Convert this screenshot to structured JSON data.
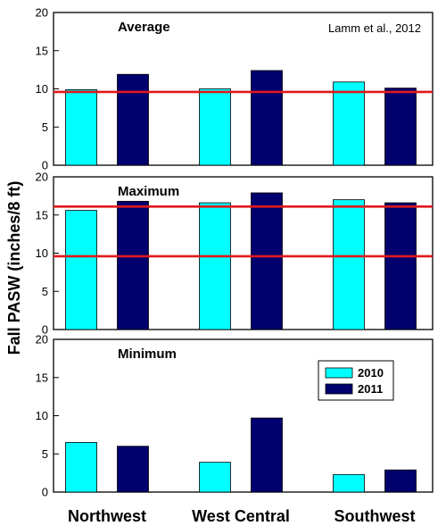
{
  "chart_data": {
    "type": "bar",
    "ylabel": "Fall PASW (inches/8 ft)",
    "annotation": "Lamm et al., 2012",
    "categories": [
      "Northwest",
      "West Central",
      "Southwest"
    ],
    "ylim": [
      0,
      20
    ],
    "yticks": [
      0,
      5,
      10,
      15,
      20
    ],
    "legend": {
      "placement": "right",
      "panel": "Minimum",
      "entries": [
        "2010",
        "2011"
      ]
    },
    "colors": {
      "2010": "#00ffff",
      "2011": "#00006e",
      "reference_line": "#e0191c"
    },
    "panels": [
      {
        "title": "Average",
        "series": [
          {
            "name": "2010",
            "values": [
              9.9,
              10.0,
              10.9
            ]
          },
          {
            "name": "2011",
            "values": [
              11.9,
              12.4,
              10.1
            ]
          }
        ],
        "reference_lines": [
          9.6
        ]
      },
      {
        "title": "Maximum",
        "series": [
          {
            "name": "2010",
            "values": [
              15.6,
              16.6,
              17.0
            ]
          },
          {
            "name": "2011",
            "values": [
              16.8,
              17.9,
              16.6
            ]
          }
        ],
        "reference_lines": [
          16.1,
          9.6
        ]
      },
      {
        "title": "Minimum",
        "series": [
          {
            "name": "2010",
            "values": [
              6.5,
              3.9,
              2.3
            ]
          },
          {
            "name": "2011",
            "values": [
              6.0,
              9.7,
              2.9
            ]
          }
        ],
        "reference_lines": []
      }
    ]
  }
}
